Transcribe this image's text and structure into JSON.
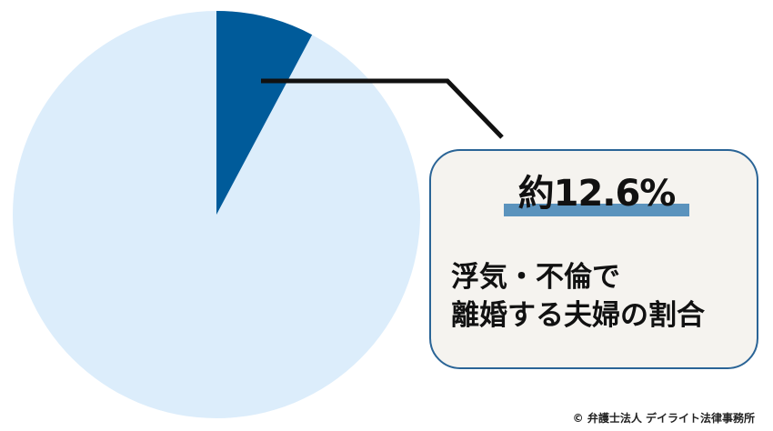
{
  "chart_data": {
    "type": "pie",
    "slices": [
      {
        "label": "浮気・不倫で離婚する夫婦の割合",
        "value": 12.6
      },
      {
        "label": "",
        "value": 87.4
      }
    ],
    "colors": {
      "highlight": "#005b9a",
      "rest": "#dcedfb",
      "callout_border": "#2a6496",
      "callout_fill": "#f5f3ef",
      "underline": "#5b93bd"
    }
  },
  "callout": {
    "value_text": "約12.6%",
    "line1": "浮気・不倫で",
    "line2": "離婚する夫婦の割合"
  },
  "copyright": "© 弁護士法人 デイライト法律事務所"
}
